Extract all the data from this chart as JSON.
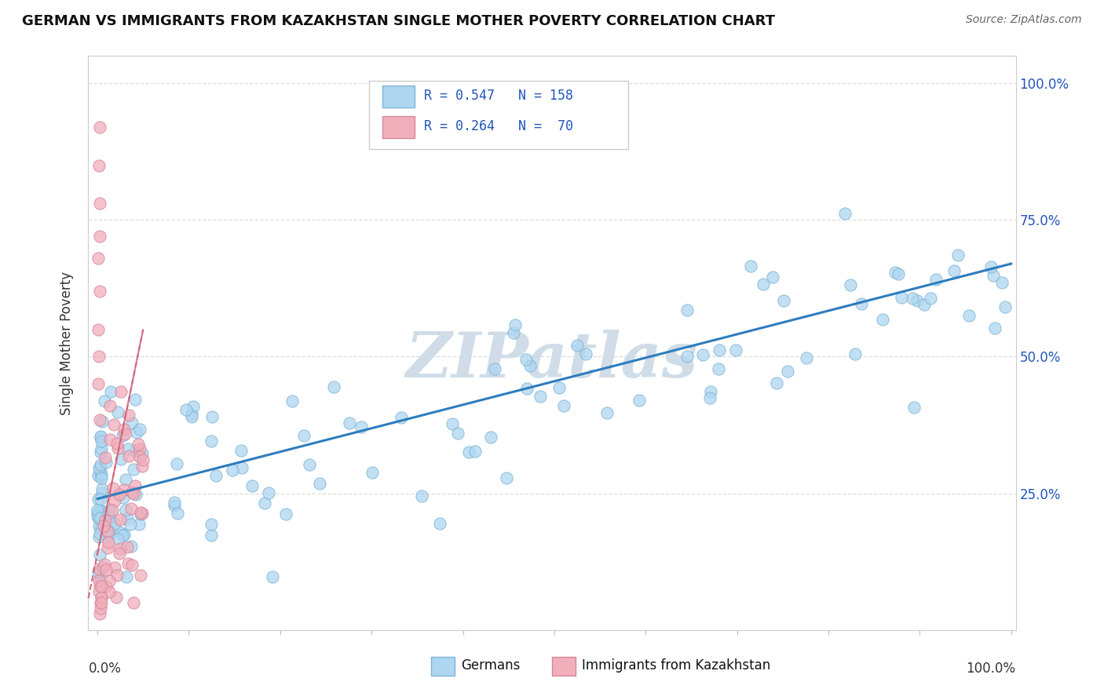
{
  "title": "GERMAN VS IMMIGRANTS FROM KAZAKHSTAN SINGLE MOTHER POVERTY CORRELATION CHART",
  "source": "Source: ZipAtlas.com",
  "ylabel": "Single Mother Poverty",
  "german_color": "#aed6f1",
  "german_edge": "#7fb3d3",
  "kazakh_color": "#f1aebb",
  "kazakh_edge": "#d4879a",
  "trend_german_color": "#2e7dbe",
  "trend_kazakh_color": "#d4687e",
  "watermark_color": "#d0dde8",
  "R_german": 0.547,
  "N_german": 158,
  "R_kazakh": 0.264,
  "N_kazakh": 70,
  "legend_blue_label": "R = 0.547   N = 158",
  "legend_pink_label": "R = 0.264   N =  70",
  "legend_text_color": "#2255bb",
  "ytick_color": "#2255bb",
  "ytick_labels": [
    "25.0%",
    "50.0%",
    "75.0%",
    "100.0%"
  ],
  "ytick_values": [
    0.25,
    0.5,
    0.75,
    1.0
  ],
  "xlim": [
    0.0,
    1.0
  ],
  "ylim": [
    0.0,
    1.05
  ],
  "trend_german_x0": 0.0,
  "trend_german_y0": 0.24,
  "trend_german_x1": 1.0,
  "trend_german_y1": 0.67,
  "trend_kazakh_x0": 0.0,
  "trend_kazakh_y0": 0.14,
  "trend_kazakh_x1": 0.05,
  "trend_kazakh_y1": 0.55
}
